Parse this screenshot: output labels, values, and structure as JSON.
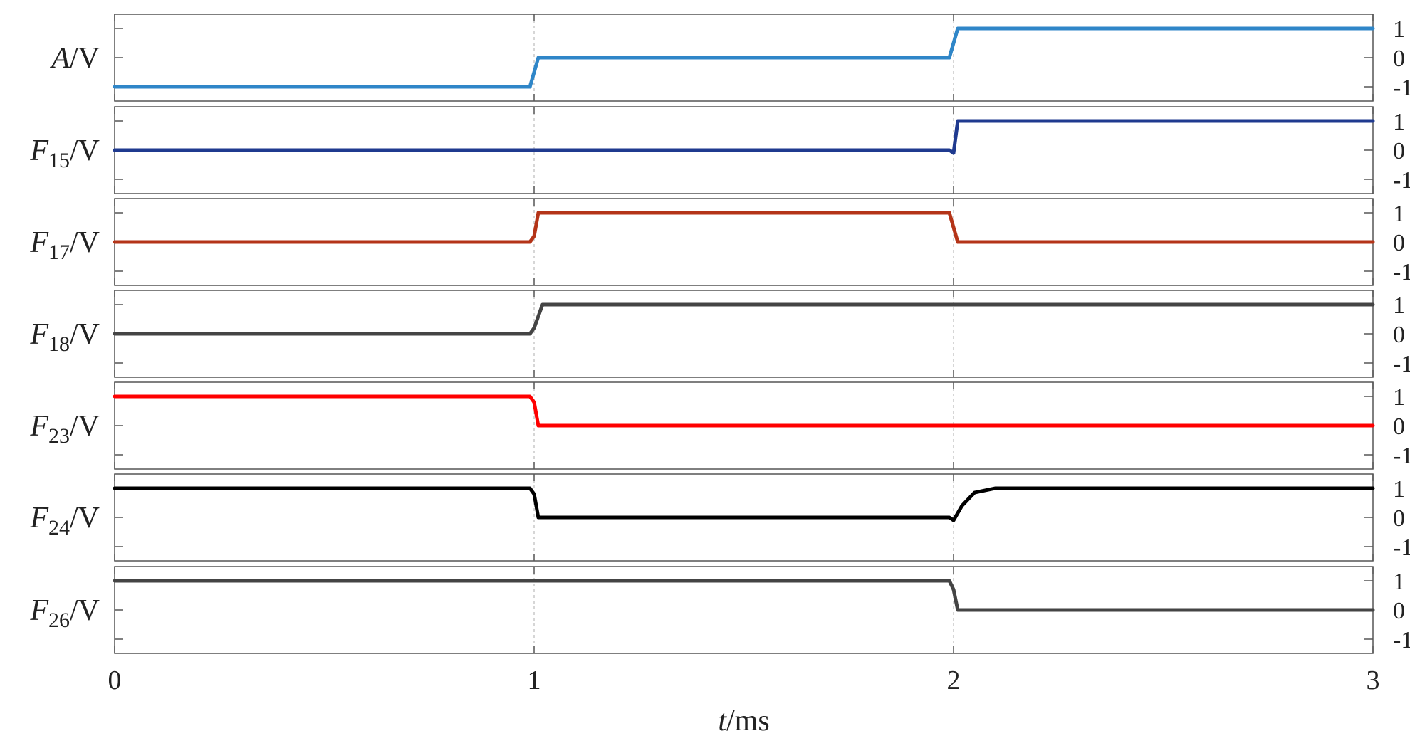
{
  "chart_data": {
    "type": "line",
    "layout": "stacked-panels",
    "x_label": {
      "var": "t",
      "unit": "/ms"
    },
    "xlim": [
      0,
      3
    ],
    "x_ticks": [
      0,
      1,
      2,
      3
    ],
    "y_ticks": [
      1,
      0,
      -1
    ],
    "ylim": [
      -1,
      1
    ],
    "grid": "vertical dashed at x ticks",
    "panels": [
      {
        "label_main": "A",
        "label_sub": "",
        "label_unit": "/V",
        "color": "#2f86c8",
        "x": [
          0,
          0.99,
          1.01,
          1.99,
          2.01,
          3
        ],
        "y": [
          -1,
          -1,
          0,
          0,
          1,
          1
        ]
      },
      {
        "label_main": "F",
        "label_sub": "15",
        "label_unit": "/V",
        "color": "#1f3a8f",
        "x": [
          0,
          1.99,
          2.0,
          2.01,
          3
        ],
        "y": [
          0,
          0,
          -0.1,
          1,
          1
        ]
      },
      {
        "label_main": "F",
        "label_sub": "17",
        "label_unit": "/V",
        "color": "#b43418",
        "x": [
          0,
          0.99,
          1.0,
          1.01,
          1.99,
          2.0,
          2.01,
          3
        ],
        "y": [
          0,
          0,
          0.2,
          1,
          1,
          0.5,
          0,
          0
        ]
      },
      {
        "label_main": "F",
        "label_sub": "18",
        "label_unit": "/V",
        "color": "#444444",
        "x": [
          0,
          0.99,
          1.0,
          1.02,
          3
        ],
        "y": [
          0,
          0,
          0.2,
          1,
          1
        ]
      },
      {
        "label_main": "F",
        "label_sub": "23",
        "label_unit": "/V",
        "color": "#ff0000",
        "x": [
          0,
          0.99,
          1.0,
          1.01,
          3
        ],
        "y": [
          1,
          1,
          0.8,
          0,
          0
        ]
      },
      {
        "label_main": "F",
        "label_sub": "24",
        "label_unit": "/V",
        "color": "#000000",
        "x": [
          0,
          0.99,
          1.0,
          1.01,
          1.99,
          2.0,
          2.02,
          2.05,
          2.1,
          3
        ],
        "y": [
          1,
          1,
          0.8,
          0,
          0,
          -0.1,
          0.4,
          0.85,
          1,
          1
        ]
      },
      {
        "label_main": "F",
        "label_sub": "26",
        "label_unit": "/V",
        "color": "#444444",
        "x": [
          0,
          1.99,
          2.0,
          2.01,
          3
        ],
        "y": [
          1,
          1,
          0.7,
          0,
          0
        ]
      }
    ]
  }
}
